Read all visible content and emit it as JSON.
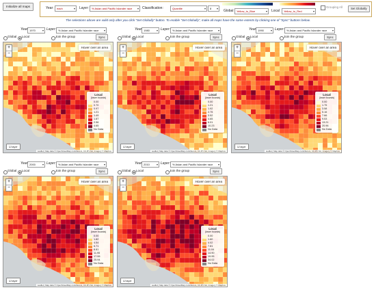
{
  "init_button": "Initialize all maps",
  "top": {
    "year_label": "Year:",
    "year_value": "each",
    "layer_label": "Layer:",
    "layer_value": "% Asian and Pacific Islander race",
    "classification_label": "Classification:",
    "classification_value": "Quantile",
    "classes_value": "8",
    "global_label": "Global",
    "global_value": "Yellow_to_Blue",
    "local_label": "Local",
    "local_value": "Yellow_to_Red",
    "grouping_label": "Grouping All",
    "set_globally": "Set Globally"
  },
  "note": "The selections above are valid only after you click \"Set Globally\" button. To enable \"Set Globally\", make all maps have the same extents by clicking one of \"Sync\" buttons below.",
  "colors": {
    "global_ramp": [
      "#ffffd9",
      "#c7e9b4",
      "#41b6c4",
      "#225ea8",
      "#081d58"
    ],
    "local_ramp": [
      "#ffffcc",
      "#fed976",
      "#feb24c",
      "#fd8d3c",
      "#fc4e2a",
      "#e31a1c",
      "#bd0026",
      "#800026"
    ],
    "nodata": "#888888"
  },
  "panels": [
    {
      "year_label": "Year:",
      "year": "1970",
      "layer_label": "Layer:",
      "layer": "% Asian and Pacific Islander race",
      "global_label": "Global",
      "local_label": "Local",
      "join_label": "Join the group",
      "sync": "Sync",
      "hover": "Hover over an area",
      "legend_title": "Local",
      "legend_sub": "(lower bounds)",
      "breaks": [
        "0.00",
        "0.70",
        "0.97",
        "1.21",
        "1.49",
        "1.87",
        "2.56",
        "4.65"
      ],
      "nodata": "No Data",
      "layers_btn": "layer",
      "attribution": "Leaflet | Map data © OpenStreetMap contributors, CC-BY-SA, Imagery © Mapbox"
    },
    {
      "year_label": "Year:",
      "year": "1980",
      "layer_label": "Layer:",
      "layer": "% Asian and Pacific Islander race",
      "global_label": "Global",
      "local_label": "Local",
      "join_label": "Join the group",
      "sync": "Sync",
      "hover": "Hover over an area",
      "legend_title": "Local",
      "legend_sub": "(lower bounds)",
      "breaks": [
        "0.00",
        "1.21",
        "1.92",
        "2.75",
        "3.52",
        "4.65",
        "6.01",
        "10.23"
      ],
      "nodata": "No Data",
      "layers_btn": "layer",
      "attribution": "Leaflet | Map data © OpenStreetMap contributors, CC-BY-SA, Imagery © Mapbox"
    },
    {
      "year_label": "Year:",
      "year": "1990",
      "layer_label": "Layer:",
      "layer": "% Asian and Pacific Islander race",
      "global_label": "Global",
      "local_label": "Local",
      "join_label": "Join the group",
      "sync": "Sync",
      "hover": "Hover over an area",
      "legend_title": "Local",
      "legend_sub": "(lower bounds)",
      "breaks": [
        "0.00",
        "1.75",
        "3.58",
        "5.16",
        "7.66",
        "9.53",
        "13.21",
        "20.96"
      ],
      "nodata": "No Data",
      "layers_btn": "layer",
      "attribution": "Leaflet | Map data © OpenStreetMap contributors, CC-BY-SA, Imagery © Mapbox"
    },
    {
      "year_label": "Year:",
      "year": "2000",
      "layer_label": "Layer:",
      "layer": "% Asian and Pacific Islander race",
      "global_label": "Global",
      "local_label": "Local",
      "join_label": "Join the group",
      "sync": "Sync",
      "hover": "Hover over an area",
      "legend_title": "Local",
      "legend_sub": "(lower bounds)",
      "breaks": [
        "0.00",
        "1.82",
        "4.54",
        "6.71",
        "8.81",
        "11.95",
        "17.06",
        "25.94"
      ],
      "nodata": "No Data",
      "layers_btn": "layer",
      "attribution": "Leaflet | Map data © OpenStreetMap contributors, CC-BY-SA, Imagery © Mapbox"
    },
    {
      "year_label": "Year:",
      "year": "2010",
      "layer_label": "Layer:",
      "layer": "% Asian and Pacific Islander race",
      "global_label": "Global",
      "local_label": "Local",
      "join_label": "Join the group",
      "sync": "Sync",
      "hover": "Hover over an area",
      "legend_title": "Local",
      "legend_sub": "(lower bounds)",
      "breaks": [
        "0.00",
        "1.60",
        "4.02",
        "7.81",
        "11.04",
        "14.90",
        "19.95",
        "34.02"
      ],
      "nodata": "No Data",
      "layers_btn": "layer",
      "attribution": "Leaflet | Map data © OpenStreetMap contributors, CC-BY-SA, Imagery © Mapbox"
    }
  ]
}
